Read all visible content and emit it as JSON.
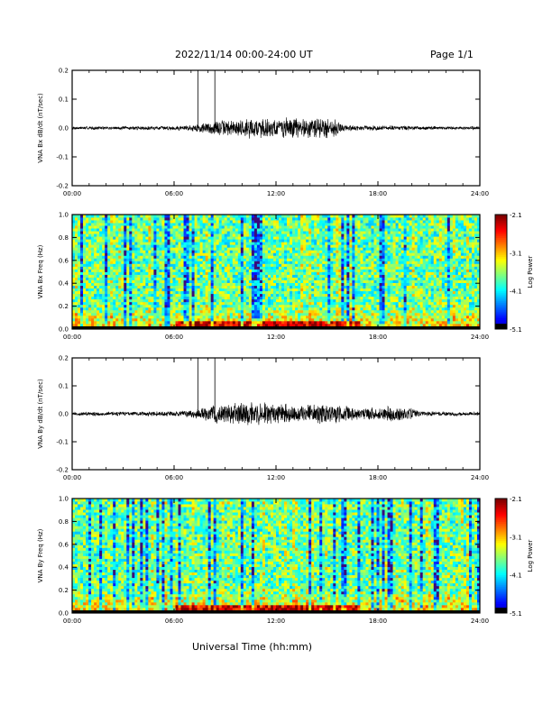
{
  "header": {
    "title": "2022/11/14  00:00-24:00 UT",
    "page": "Page 1/1"
  },
  "x_axis_title": "Universal Time (hh:mm)",
  "chart_data": [
    {
      "type": "line",
      "ylabel": "VNA Bx dB/dt (nT/sec)",
      "xlabel": "",
      "x_range": [
        "00:00",
        "24:00"
      ],
      "xticks": [
        "00:00",
        "06:00",
        "12:00",
        "18:00",
        "24:00"
      ],
      "ylim": [
        -0.2,
        0.2
      ],
      "yticks": [
        "-0.2",
        "-0.1",
        "0.0",
        "0.1",
        "0.2"
      ],
      "markers_hours": [
        7.4,
        8.4
      ],
      "envelope": {
        "hours": [
          0,
          2,
          4,
          6,
          7,
          7.5,
          8,
          9,
          10,
          11,
          12,
          13,
          14,
          15,
          15.5,
          16,
          17,
          18,
          19,
          20,
          22,
          24
        ],
        "amplitude": [
          0.006,
          0.006,
          0.007,
          0.008,
          0.012,
          0.018,
          0.025,
          0.03,
          0.035,
          0.04,
          0.038,
          0.04,
          0.038,
          0.042,
          0.035,
          0.012,
          0.009,
          0.01,
          0.009,
          0.007,
          0.006,
          0.006
        ]
      }
    },
    {
      "type": "heatmap",
      "ylabel": "VNA Bx Freq (Hz)",
      "xlabel": "",
      "x_range": [
        "00:00",
        "24:00"
      ],
      "xticks": [
        "00:00",
        "06:00",
        "12:00",
        "18:00",
        "24:00"
      ],
      "ylim": [
        0.0,
        1.0
      ],
      "yticks": [
        "0.0",
        "0.2",
        "0.4",
        "0.6",
        "0.8",
        "1.0"
      ],
      "colorbar": {
        "label": "Log Power",
        "range": [
          -5.1,
          -2.1
        ],
        "ticks": [
          "-2.1",
          "-3.1",
          "-4.1",
          "-5.1"
        ]
      },
      "low_freq_enhancement_hours": [
        6,
        17
      ],
      "seed": 11
    },
    {
      "type": "line",
      "ylabel": "VNA By dB/dt (nT/sec)",
      "xlabel": "",
      "x_range": [
        "00:00",
        "24:00"
      ],
      "xticks": [
        "00:00",
        "06:00",
        "12:00",
        "18:00",
        "24:00"
      ],
      "ylim": [
        -0.2,
        0.2
      ],
      "yticks": [
        "-0.2",
        "-0.1",
        "0.0",
        "0.1",
        "0.2"
      ],
      "markers_hours": [
        7.4,
        8.4
      ],
      "envelope": {
        "hours": [
          0,
          2,
          4,
          6,
          7,
          7.5,
          8,
          9,
          10,
          11,
          12,
          13,
          14,
          15,
          16,
          17,
          18,
          19,
          20,
          20.5,
          22,
          24
        ],
        "amplitude": [
          0.007,
          0.008,
          0.009,
          0.01,
          0.014,
          0.02,
          0.03,
          0.04,
          0.045,
          0.05,
          0.04,
          0.035,
          0.035,
          0.038,
          0.035,
          0.025,
          0.025,
          0.028,
          0.022,
          0.01,
          0.008,
          0.007
        ]
      }
    },
    {
      "type": "heatmap",
      "ylabel": "VNA By Freq (Hz)",
      "xlabel": "",
      "x_range": [
        "00:00",
        "24:00"
      ],
      "xticks": [
        "00:00",
        "06:00",
        "12:00",
        "18:00",
        "24:00"
      ],
      "ylim": [
        0.0,
        1.0
      ],
      "yticks": [
        "0.0",
        "0.2",
        "0.4",
        "0.6",
        "0.8",
        "1.0"
      ],
      "colorbar": {
        "label": "Log Power",
        "range": [
          -5.1,
          -2.1
        ],
        "ticks": [
          "-2.1",
          "-3.1",
          "-4.1",
          "-5.1"
        ]
      },
      "low_freq_enhancement_hours": [
        6,
        17
      ],
      "seed": 23
    }
  ]
}
